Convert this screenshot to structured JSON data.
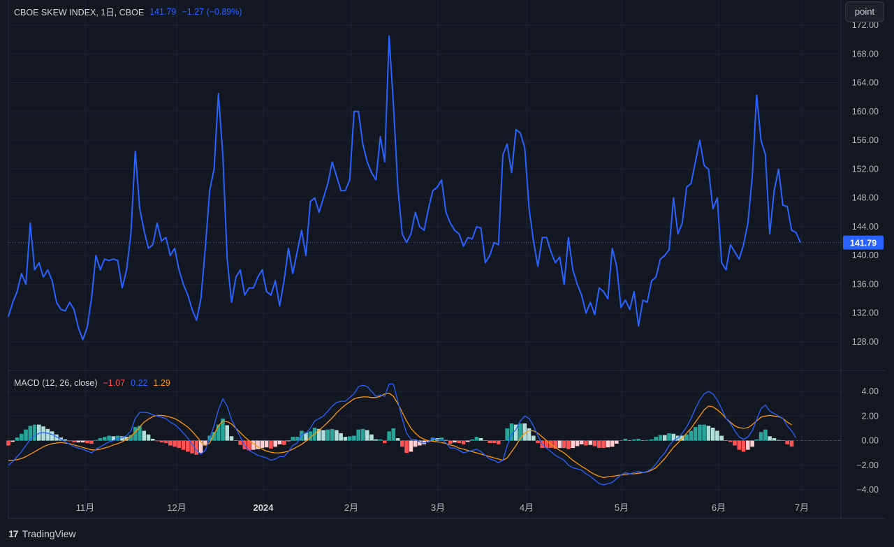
{
  "legend": {
    "title": "CBOE SKEW INDEX, 1日, CBOE",
    "last": "141.79",
    "change": "−1.27 (−0.89%)"
  },
  "macd_legend": {
    "title": "MACD (12, 26, close)",
    "hist": "−1.07",
    "macd": "0.22",
    "signal": "1.29"
  },
  "point_button": "point",
  "brand": "TradingView",
  "last_price_badge": "141.79",
  "colors": {
    "background": "#131722",
    "price_line": "#2962ff",
    "macd_line": "#2962ff",
    "signal_line": "#ff9800",
    "hist_pos_strong": "#26a69a",
    "hist_pos_weak": "#b2dfdb",
    "hist_neg_strong": "#ff5252",
    "hist_neg_weak": "#ffcdd2"
  },
  "chart_data": [
    {
      "type": "line",
      "name": "CBOE SKEW INDEX",
      "ylim": [
        125,
        172
      ],
      "y_ticks": [
        "128.00",
        "132.00",
        "136.00",
        "140.00",
        "144.00",
        "148.00",
        "152.00",
        "156.00",
        "160.00",
        "164.00",
        "168.00",
        "172.00"
      ],
      "x_ticks": [
        "11月",
        "12月",
        "2024",
        "2月",
        "3月",
        "4月",
        "5月",
        "6月",
        "7月"
      ],
      "values": [
        131.5,
        133.5,
        135.0,
        137.5,
        136.0,
        144.5,
        138.0,
        139.0,
        137.0,
        138.0,
        136.5,
        133.5,
        132.5,
        132.3,
        133.5,
        132.5,
        130.0,
        128.3,
        130.0,
        134.0,
        140.0,
        138.0,
        139.5,
        139.3,
        139.5,
        139.3,
        135.5,
        138.0,
        143.0,
        154.5,
        146.5,
        143.5,
        141.0,
        141.5,
        144.5,
        142.0,
        142.5,
        140.0,
        141.0,
        138.0,
        136.0,
        134.5,
        132.5,
        131.0,
        134.0,
        141.0,
        149.0,
        152.0,
        162.5,
        154.0,
        139.5,
        133.5,
        137.0,
        138.0,
        134.5,
        135.5,
        135.5,
        137.0,
        138.0,
        135.0,
        134.5,
        136.5,
        133.0,
        136.5,
        141.0,
        137.5,
        140.5,
        143.5,
        140.0,
        147.5,
        148.0,
        146.0,
        148.0,
        150.0,
        153.0,
        151.0,
        149.0,
        149.0,
        150.5,
        160.0,
        160.0,
        155.5,
        153.0,
        151.5,
        150.5,
        156.5,
        153.0,
        170.5,
        161.0,
        149.5,
        143.0,
        141.8,
        143.0,
        146.0,
        144.0,
        143.5,
        146.5,
        149.0,
        149.5,
        150.5,
        146.0,
        144.5,
        143.5,
        143.0,
        141.3,
        142.5,
        142.3,
        144.0,
        143.8,
        139.0,
        140.0,
        141.8,
        141.5,
        154.0,
        155.5,
        151.5,
        157.5,
        157.0,
        155.0,
        146.5,
        142.0,
        138.5,
        142.5,
        142.5,
        140.5,
        139.0,
        139.8,
        136.0,
        142.5,
        138.0,
        136.0,
        134.5,
        132.0,
        133.5,
        131.8,
        135.5,
        135.0,
        134.0,
        141.0,
        138.5,
        132.8,
        133.8,
        132.5,
        135.0,
        130.2,
        133.8,
        133.5,
        136.5,
        137.0,
        139.5,
        140.0,
        140.8,
        148.0,
        143.0,
        144.5,
        149.5,
        150.0,
        153.0,
        156.0,
        152.5,
        152.0,
        146.5,
        148.0,
        139.0,
        138.0,
        141.5,
        140.5,
        139.5,
        141.5,
        144.5,
        151.0,
        162.3,
        156.0,
        154.0,
        143.0,
        149.0,
        152.0,
        147.0,
        146.8,
        143.5,
        143.2,
        141.8
      ]
    },
    {
      "type": "bar",
      "name": "MACD (12, 26, close)",
      "ylim": [
        -4.8,
        4.8
      ],
      "y_ticks": [
        "4.00",
        "2.00",
        "0.00",
        "−2.00",
        "−4.00"
      ],
      "series": [
        {
          "name": "MACD",
          "values": [
            -2.0,
            -1.7,
            -1.3,
            -0.9,
            -0.4,
            0.1,
            0.4,
            0.6,
            0.65,
            0.6,
            0.5,
            0.3,
            0.1,
            -0.1,
            -0.3,
            -0.5,
            -0.6,
            -0.7,
            -0.85,
            -1.0,
            -0.7,
            -0.5,
            -0.3,
            -0.1,
            0.0,
            0.15,
            0.25,
            0.4,
            0.8,
            1.8,
            2.3,
            2.3,
            2.25,
            2.1,
            2.0,
            1.9,
            1.8,
            1.5,
            1.3,
            1.0,
            0.6,
            0.2,
            -0.3,
            -0.8,
            -1.1,
            -0.8,
            0.2,
            1.2,
            2.5,
            3.4,
            2.8,
            1.7,
            1.0,
            0.3,
            -0.4,
            -0.8,
            -1.0,
            -1.2,
            -1.3,
            -1.4,
            -1.6,
            -1.5,
            -1.3,
            -1.3,
            -0.9,
            -0.4,
            -0.2,
            0.5,
            0.6,
            1.0,
            1.6,
            1.8,
            2.0,
            2.4,
            2.8,
            3.1,
            3.2,
            3.2,
            3.5,
            3.8,
            4.4,
            4.5,
            4.4,
            4.0,
            3.6,
            3.7,
            3.6,
            4.6,
            4.6,
            3.2,
            1.8,
            0.6,
            0.1,
            0.1,
            -0.1,
            -0.2,
            -0.1,
            0.2,
            0.1,
            0.1,
            -0.2,
            -0.6,
            -0.6,
            -0.8,
            -1.0,
            -0.9,
            -0.8,
            -0.7,
            -0.9,
            -1.2,
            -1.5,
            -1.6,
            -1.8,
            -1.6,
            -0.4,
            0.5,
            0.9,
            1.6,
            2.0,
            1.8,
            1.2,
            0.4,
            -0.3,
            -0.6,
            -0.9,
            -1.2,
            -1.4,
            -1.6,
            -2.0,
            -2.2,
            -2.3,
            -2.4,
            -2.7,
            -2.9,
            -3.2,
            -3.5,
            -3.6,
            -3.5,
            -3.4,
            -3.1,
            -2.8,
            -2.6,
            -2.7,
            -2.6,
            -2.5,
            -2.6,
            -2.5,
            -2.3,
            -1.9,
            -1.4,
            -1.0,
            -0.4,
            0.0,
            0.2,
            0.6,
            1.1,
            1.8,
            2.6,
            3.3,
            3.8,
            4.0,
            3.8,
            3.3,
            2.6,
            1.8,
            1.4,
            0.8,
            0.3,
            0.1,
            0.3,
            0.8,
            1.7,
            2.6,
            2.9,
            2.4,
            2.2,
            2.0,
            1.8,
            1.2,
            0.8,
            0.22
          ]
        },
        {
          "name": "Signal",
          "values": [
            -1.6,
            -1.6,
            -1.55,
            -1.45,
            -1.3,
            -1.1,
            -0.9,
            -0.7,
            -0.5,
            -0.35,
            -0.25,
            -0.2,
            -0.15,
            -0.2,
            -0.25,
            -0.35,
            -0.45,
            -0.55,
            -0.65,
            -0.75,
            -0.75,
            -0.7,
            -0.6,
            -0.5,
            -0.35,
            -0.25,
            -0.1,
            0.1,
            0.35,
            0.7,
            1.1,
            1.5,
            1.75,
            1.95,
            2.05,
            2.05,
            2.0,
            1.9,
            1.8,
            1.6,
            1.35,
            1.1,
            0.75,
            0.35,
            -0.1,
            -0.4,
            -0.2,
            0.5,
            1.2,
            1.6,
            1.55,
            1.35,
            1.0,
            0.65,
            0.3,
            0.0,
            -0.25,
            -0.5,
            -0.7,
            -0.85,
            -0.95,
            -1.0,
            -1.0,
            -0.95,
            -0.85,
            -0.7,
            -0.5,
            -0.3,
            -0.05,
            0.25,
            0.55,
            0.85,
            1.15,
            1.5,
            1.85,
            2.25,
            2.6,
            2.9,
            3.15,
            3.4,
            3.5,
            3.55,
            3.55,
            3.5,
            3.5,
            3.6,
            3.8,
            3.85,
            3.6,
            3.0,
            2.3,
            1.6,
            1.0,
            0.6,
            0.3,
            0.1,
            0.0,
            -0.05,
            -0.1,
            -0.15,
            -0.25,
            -0.35,
            -0.45,
            -0.6,
            -0.7,
            -0.8,
            -0.9,
            -1.0,
            -1.1,
            -1.2,
            -1.3,
            -1.4,
            -1.5,
            -1.6,
            -1.4,
            -0.9,
            -0.4,
            0.2,
            0.6,
            0.8,
            0.8,
            0.6,
            0.3,
            0.0,
            -0.3,
            -0.55,
            -0.8,
            -1.0,
            -1.3,
            -1.6,
            -1.85,
            -2.1,
            -2.3,
            -2.55,
            -2.75,
            -2.9,
            -3.0,
            -2.95,
            -2.9,
            -2.85,
            -2.8,
            -2.75,
            -2.7,
            -2.7,
            -2.65,
            -2.6,
            -2.55,
            -2.4,
            -2.2,
            -1.85,
            -1.45,
            -1.0,
            -0.55,
            -0.2,
            0.2,
            0.6,
            1.0,
            1.5,
            2.0,
            2.5,
            2.8,
            2.75,
            2.5,
            2.2,
            1.8,
            1.5,
            1.2,
            1.05,
            1.0,
            1.05,
            1.3,
            1.6,
            1.9,
            2.0,
            2.05,
            2.0,
            1.95,
            1.8,
            1.5,
            1.29
          ]
        }
      ]
    }
  ]
}
